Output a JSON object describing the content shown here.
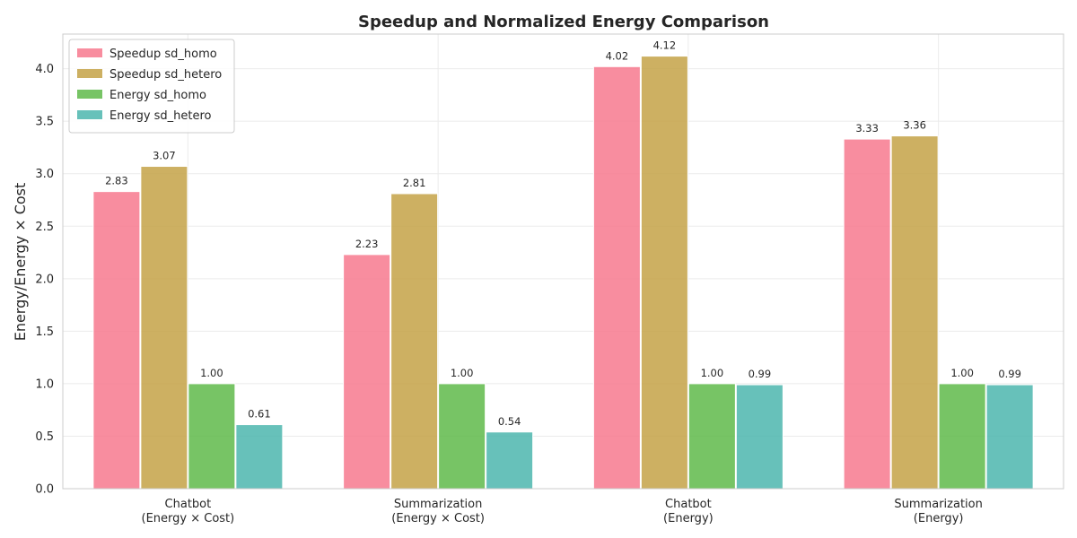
{
  "chart_data": {
    "type": "bar",
    "title": "Speedup and Normalized Energy Comparison",
    "xlabel": "",
    "ylabel": "Energy/Energy × Cost",
    "ylim": [
      0,
      4.33
    ],
    "yticks": [
      "0.0",
      "0.5",
      "1.0",
      "1.5",
      "2.0",
      "2.5",
      "3.0",
      "3.5",
      "4.0"
    ],
    "grid": true,
    "legend_position": "top-left",
    "categories": [
      [
        "Chatbot",
        "(Energy × Cost)"
      ],
      [
        "Summarization",
        "(Energy × Cost)"
      ],
      [
        "Chatbot",
        "(Energy)"
      ],
      [
        "Summarization",
        "(Energy)"
      ]
    ],
    "series": [
      {
        "name": "Speedup sd_homo",
        "color": "#f7798e",
        "values": [
          2.83,
          2.23,
          4.02,
          3.33
        ],
        "labels": [
          "2.83",
          "2.23",
          "4.02",
          "3.33"
        ]
      },
      {
        "name": "Speedup sd_hetero",
        "color": "#c4a246",
        "values": [
          3.07,
          2.81,
          4.12,
          3.36
        ],
        "labels": [
          "3.07",
          "2.81",
          "4.12",
          "3.36"
        ]
      },
      {
        "name": "Energy sd_homo",
        "color": "#5fba4a",
        "values": [
          1.0,
          1.0,
          1.0,
          1.0
        ],
        "labels": [
          "1.00",
          "1.00",
          "1.00",
          "1.00"
        ]
      },
      {
        "name": "Energy sd_hetero",
        "color": "#4cb6ae",
        "values": [
          0.61,
          0.54,
          0.99,
          0.99
        ],
        "labels": [
          "0.61",
          "0.54",
          "0.99",
          "0.99"
        ]
      }
    ]
  }
}
